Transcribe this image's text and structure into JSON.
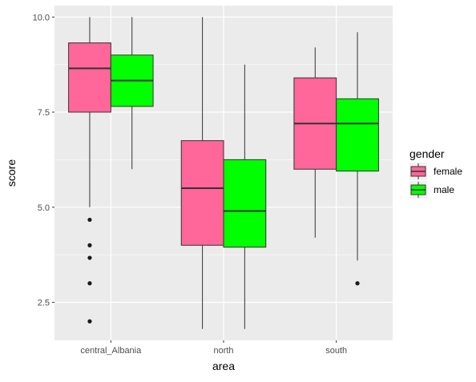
{
  "chart_data": {
    "type": "boxplot",
    "xlabel": "area",
    "ylabel": "score",
    "categories": [
      "central_Albania",
      "north",
      "south"
    ],
    "ylim": [
      1.5,
      10.3
    ],
    "y_ticks": [
      "2.5",
      "5.0",
      "7.5",
      "10.0"
    ],
    "grid": true,
    "legend": {
      "title": "gender",
      "position": "right",
      "entries": [
        "female",
        "male"
      ]
    },
    "series": [
      {
        "name": "female",
        "color": "#ff6699",
        "boxes": [
          {
            "category": "central_Albania",
            "whisker_low": 5.0,
            "q1": 7.5,
            "median": 8.65,
            "q3": 9.32,
            "whisker_high": 10.0,
            "outliers": [
              4.67,
              4.0,
              3.67,
              3.0,
              2.0
            ]
          },
          {
            "category": "north",
            "whisker_low": 1.8,
            "q1": 4.0,
            "median": 5.5,
            "q3": 6.75,
            "whisker_high": 10.0,
            "outliers": []
          },
          {
            "category": "south",
            "whisker_low": 4.2,
            "q1": 6.0,
            "median": 7.2,
            "q3": 8.4,
            "whisker_high": 9.2,
            "outliers": []
          }
        ]
      },
      {
        "name": "male",
        "color": "#00ff00",
        "boxes": [
          {
            "category": "central_Albania",
            "whisker_low": 6.0,
            "q1": 7.65,
            "median": 8.33,
            "q3": 9.0,
            "whisker_high": 10.0,
            "outliers": []
          },
          {
            "category": "north",
            "whisker_low": 1.8,
            "q1": 3.95,
            "median": 4.9,
            "q3": 6.25,
            "whisker_high": 8.75,
            "outliers": []
          },
          {
            "category": "south",
            "whisker_low": 3.6,
            "q1": 5.95,
            "median": 7.2,
            "q3": 7.85,
            "whisker_high": 9.6,
            "outliers": [
              3.0
            ]
          }
        ]
      }
    ]
  }
}
